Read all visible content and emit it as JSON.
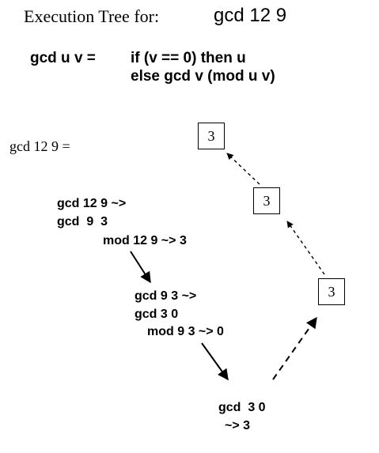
{
  "header": {
    "label": "Execution Tree for:",
    "expression": "gcd 12 9"
  },
  "definition": {
    "signature": "gcd u v =",
    "line1": "if (v == 0) then u",
    "line2": "else gcd v (mod u v)"
  },
  "start_label": "gcd 12 9 =",
  "steps": [
    {
      "line1": "gcd 12 9 ~>",
      "line2": "gcd  9  3",
      "line3": "mod 12 9 ~> 3"
    },
    {
      "line1": "gcd 9 3 ~>",
      "line2": "gcd 3 0",
      "line3": "mod 9 3 ~> 0"
    },
    {
      "line1": "gcd  3 0",
      "line2": "~> 3"
    }
  ],
  "results": [
    "3",
    "3",
    "3"
  ]
}
